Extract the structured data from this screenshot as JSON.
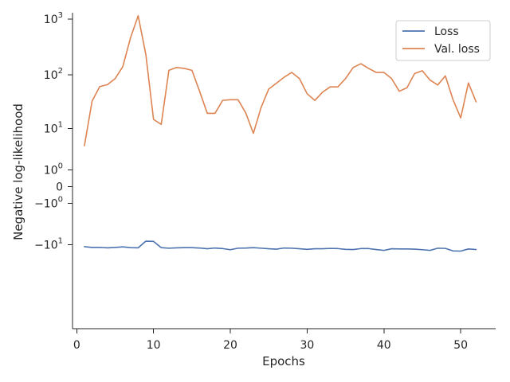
{
  "chart_data": {
    "type": "line",
    "xlabel": "Epochs",
    "ylabel": "Negative log-likelihood",
    "xlim": [
      -0.55,
      54.55
    ],
    "ylim": [
      -350,
      1300
    ],
    "yscale": "symlog",
    "linthresh": 1,
    "grid": false,
    "legend_position": "top-right",
    "x_ticks": [
      0,
      10,
      20,
      30,
      40,
      50
    ],
    "y_ticks": [
      {
        "value": 1000,
        "base": "10",
        "exp": "3"
      },
      {
        "value": 100,
        "base": "10",
        "exp": "2"
      },
      {
        "value": 10,
        "base": "10",
        "exp": "1"
      },
      {
        "value": 1,
        "base": "10",
        "exp": "0"
      },
      {
        "value": 0,
        "base": "0",
        "exp": ""
      },
      {
        "value": -1,
        "base": "−10",
        "exp": "0"
      },
      {
        "value": -10,
        "base": "−10",
        "exp": "1"
      }
    ],
    "x": [
      1,
      2,
      3,
      4,
      5,
      6,
      7,
      8,
      9,
      10,
      11,
      12,
      13,
      14,
      15,
      16,
      17,
      18,
      19,
      20,
      21,
      22,
      23,
      24,
      25,
      26,
      27,
      28,
      29,
      30,
      31,
      32,
      33,
      34,
      35,
      36,
      37,
      38,
      39,
      40,
      41,
      42,
      43,
      44,
      45,
      46,
      47,
      48,
      49,
      50,
      51,
      52
    ],
    "series": [
      {
        "name": "Loss",
        "color": "#4c72b0",
        "values": [
          -10.9,
          -11.3,
          -11.3,
          -11.5,
          -11.3,
          -11.0,
          -11.4,
          -11.5,
          -8.5,
          -8.6,
          -11.4,
          -11.7,
          -11.5,
          -11.4,
          -11.4,
          -11.6,
          -12.0,
          -11.6,
          -11.9,
          -12.5,
          -11.7,
          -11.6,
          -11.4,
          -11.7,
          -12.0,
          -12.2,
          -11.6,
          -11.7,
          -12.0,
          -12.3,
          -12.0,
          -12.0,
          -11.8,
          -11.9,
          -12.3,
          -12.4,
          -11.9,
          -11.9,
          -12.4,
          -12.9,
          -12.0,
          -12.1,
          -12.1,
          -12.2,
          -12.5,
          -12.9,
          -11.7,
          -11.8,
          -13.2,
          -13.3,
          -12.1,
          -12.4
        ]
      },
      {
        "name": "Val. loss",
        "color": "#dd8452",
        "values": [
          4.4,
          33,
          61,
          66,
          85,
          140,
          460,
          1150,
          230,
          15,
          12,
          120,
          135,
          130,
          120,
          50,
          19.5,
          19.5,
          34,
          35,
          35,
          20,
          8,
          25,
          55,
          70,
          90,
          110,
          85,
          45,
          34,
          48,
          60,
          60,
          85,
          135,
          158,
          130,
          110,
          110,
          85,
          50,
          58,
          105,
          118,
          80,
          65,
          95,
          35,
          16,
          71,
          32
        ]
      }
    ]
  }
}
